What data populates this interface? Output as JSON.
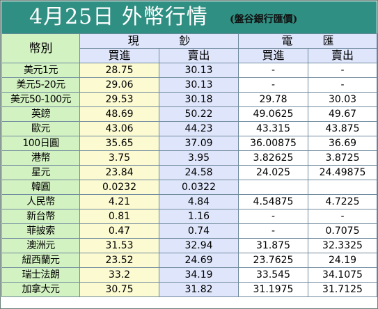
{
  "title": {
    "main": "4月25日 外幣行情",
    "source": "(盤谷銀行匯價)"
  },
  "header": {
    "currency": "幣別",
    "cash_chars": [
      "現",
      "鈔"
    ],
    "transfer_chars": [
      "電",
      "匯"
    ],
    "buy": "買進",
    "sell": "賣出"
  },
  "rows": [
    {
      "name": "美元1元",
      "cash_buy": "28.75",
      "cash_sell": "30.13",
      "tt_buy": "-",
      "tt_sell": "-"
    },
    {
      "name": "美元5-20元",
      "cash_buy": "29.06",
      "cash_sell": "30.13",
      "tt_buy": "-",
      "tt_sell": "-"
    },
    {
      "name": "美元50-100元",
      "cash_buy": "29.53",
      "cash_sell": "30.18",
      "tt_buy": "29.78",
      "tt_sell": "30.03"
    },
    {
      "name": "英鎊",
      "cash_buy": "48.69",
      "cash_sell": "50.22",
      "tt_buy": "49.0625",
      "tt_sell": "49.67"
    },
    {
      "name": "歐元",
      "cash_buy": "43.06",
      "cash_sell": "44.23",
      "tt_buy": "43.315",
      "tt_sell": "43.875"
    },
    {
      "name": "100日圓",
      "cash_buy": "35.65",
      "cash_sell": "37.09",
      "tt_buy": "36.00875",
      "tt_sell": "36.69"
    },
    {
      "name": "港幣",
      "cash_buy": "3.75",
      "cash_sell": "3.95",
      "tt_buy": "3.82625",
      "tt_sell": "3.8725"
    },
    {
      "name": "星元",
      "cash_buy": "23.84",
      "cash_sell": "24.58",
      "tt_buy": "24.025",
      "tt_sell": "24.49875"
    },
    {
      "name": "韓圓",
      "cash_buy": "0.0232",
      "cash_sell": "0.0322",
      "tt_buy": "",
      "tt_sell": ""
    },
    {
      "name": "人民幣",
      "cash_buy": "4.21",
      "cash_sell": "4.84",
      "tt_buy": "4.54875",
      "tt_sell": "4.7225"
    },
    {
      "name": "新台幣",
      "cash_buy": "0.81",
      "cash_sell": "1.16",
      "tt_buy": "-",
      "tt_sell": "-"
    },
    {
      "name": "菲披索",
      "cash_buy": "0.47",
      "cash_sell": "0.74",
      "tt_buy": "-",
      "tt_sell": "0.7075"
    },
    {
      "name": "澳洲元",
      "cash_buy": "31.53",
      "cash_sell": "32.94",
      "tt_buy": "31.875",
      "tt_sell": "32.3325"
    },
    {
      "name": "紐西蘭元",
      "cash_buy": "23.52",
      "cash_sell": "24.69",
      "tt_buy": "23.7625",
      "tt_sell": "24.19"
    },
    {
      "name": "瑞士法朗",
      "cash_buy": "33.2",
      "cash_sell": "34.19",
      "tt_buy": "33.545",
      "tt_sell": "34.1075"
    },
    {
      "name": "加拿大元",
      "cash_buy": "30.75",
      "cash_sell": "31.82",
      "tt_buy": "31.1975",
      "tt_sell": "31.7125"
    }
  ]
}
